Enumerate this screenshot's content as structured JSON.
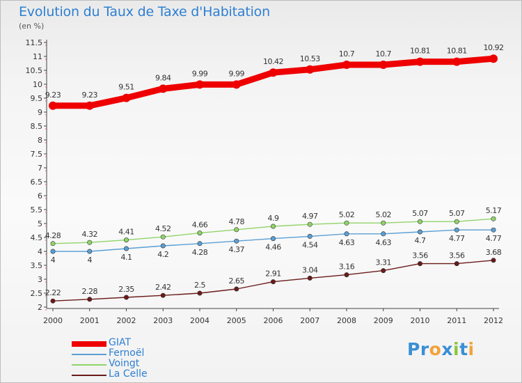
{
  "title": "Evolution du Taux de Taxe d'Habitation",
  "subtitle": "(en %)",
  "chart_data": {
    "type": "line",
    "title": "Evolution du Taux de Taxe d'Habitation",
    "subtitle": "(en %)",
    "x": [
      "2000",
      "2001",
      "2002",
      "2003",
      "2004",
      "2005",
      "2006",
      "2007",
      "2008",
      "2009",
      "2010",
      "2011",
      "2012"
    ],
    "ylim": [
      2,
      11.5
    ],
    "yticks": [
      "2",
      "2.5",
      "3",
      "3.5",
      "4",
      "4.5",
      "5",
      "5.5",
      "6",
      "6.5",
      "7",
      "7.5",
      "8",
      "8.5",
      "9",
      "9.5",
      "10",
      "10.5",
      "11",
      "11.5"
    ],
    "grid": false,
    "legend_position": "bottom-left",
    "series": [
      {
        "name": "GIAT",
        "color": "#ee0000",
        "values": [
          9.23,
          9.23,
          9.51,
          9.84,
          9.99,
          9.99,
          10.42,
          10.53,
          10.7,
          10.7,
          10.81,
          10.81,
          10.92
        ],
        "labels": [
          "9.23",
          "9.23",
          "9.51",
          "9.84",
          "9.99",
          "9.99",
          "10.42",
          "10.53",
          "10.7",
          "10.7",
          "10.81",
          "10.81",
          "10.92"
        ]
      },
      {
        "name": "Fernoël",
        "color": "#5a9fd4",
        "values": [
          4,
          4,
          4.1,
          4.2,
          4.28,
          4.37,
          4.46,
          4.54,
          4.63,
          4.63,
          4.7,
          4.77,
          4.77
        ],
        "labels": [
          "4",
          "4",
          "4.1",
          "4.2",
          "4.28",
          "4.37",
          "4.46",
          "4.54",
          "4.63",
          "4.63",
          "4.7",
          "4.77",
          "4.77"
        ]
      },
      {
        "name": "Voingt",
        "color": "#90d46a",
        "values": [
          4.28,
          4.32,
          4.41,
          4.52,
          4.66,
          4.78,
          4.9,
          4.97,
          5.02,
          5.02,
          5.07,
          5.07,
          5.17
        ],
        "labels": [
          "4.28",
          "4.32",
          "4.41",
          "4.52",
          "4.66",
          "4.78",
          "4.9",
          "4.97",
          "5.02",
          "5.02",
          "5.07",
          "5.07",
          "5.17"
        ]
      },
      {
        "name": "La Celle",
        "color": "#6b1a1a",
        "values": [
          2.22,
          2.28,
          2.35,
          2.42,
          2.5,
          2.65,
          2.91,
          3.04,
          3.16,
          3.31,
          3.56,
          3.56,
          3.68
        ],
        "labels": [
          "2.22",
          "2.28",
          "2.35",
          "2.42",
          "2.5",
          "2.65",
          "2.91",
          "3.04",
          "3.16",
          "3.31",
          "3.56",
          "3.56",
          "3.68"
        ]
      }
    ]
  },
  "legend": [
    {
      "label": "GIAT",
      "color": "#ee0000"
    },
    {
      "label": "Fernoël",
      "color": "#5a9fd4"
    },
    {
      "label": "Voingt",
      "color": "#90d46a"
    },
    {
      "label": "La Celle",
      "color": "#6b1a1a"
    }
  ],
  "logo": {
    "text": "Proxiti",
    "letters": [
      "P",
      "r",
      "o",
      "x",
      "i",
      "t",
      "i"
    ],
    "colors": [
      "#3a8fd6",
      "#3a8fd6",
      "#f2a23a",
      "#3a8fd6",
      "#8cc63f",
      "#3a8fd6",
      "#f2a23a"
    ]
  }
}
